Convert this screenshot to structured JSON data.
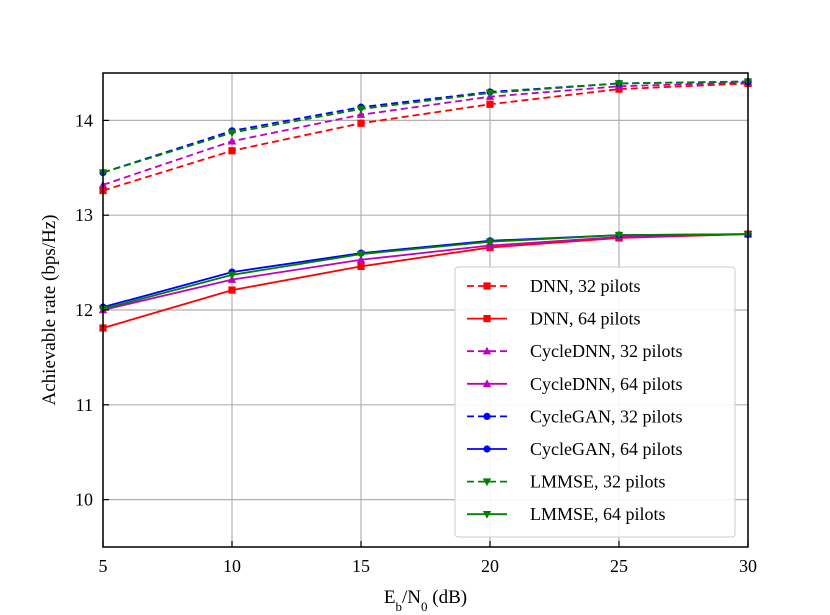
{
  "chart_data": {
    "type": "line",
    "title": "",
    "xlabel": {
      "base": "E",
      "sub1": "b",
      "mid": "/N",
      "sub2": "0",
      "tail": " (dB)"
    },
    "ylabel": "Achievable rate (bps/Hz)",
    "xlim": [
      5,
      30
    ],
    "ylim": [
      9.5,
      14.5
    ],
    "xticks": [
      5,
      10,
      15,
      20,
      25,
      30
    ],
    "yticks": [
      10,
      11,
      12,
      13,
      14
    ],
    "grid": true,
    "legend_position": "lower-right",
    "x": [
      5,
      10,
      15,
      20,
      25,
      30
    ],
    "series": [
      {
        "name": "DNN, 32 pilots",
        "color": "#ff0000",
        "dash": "dashed",
        "marker": "square",
        "values": [
          13.26,
          13.68,
          13.97,
          14.17,
          14.33,
          14.39
        ]
      },
      {
        "name": "DNN, 64 pilots",
        "color": "#ff0000",
        "dash": "solid",
        "marker": "square",
        "values": [
          11.81,
          12.21,
          12.46,
          12.66,
          12.76,
          12.8
        ]
      },
      {
        "name": "CycleDNN, 32 pilots",
        "color": "#bf00bf",
        "dash": "dashed",
        "marker": "triangle-up",
        "values": [
          13.32,
          13.78,
          14.06,
          14.25,
          14.36,
          14.4
        ]
      },
      {
        "name": "CycleDNN, 64 pilots",
        "color": "#bf00bf",
        "dash": "solid",
        "marker": "triangle-up",
        "values": [
          12.0,
          12.32,
          12.53,
          12.68,
          12.77,
          12.8
        ]
      },
      {
        "name": "CycleGAN, 32 pilots",
        "color": "#0000ff",
        "dash": "dashed",
        "marker": "circle",
        "values": [
          13.45,
          13.89,
          14.14,
          14.3,
          14.39,
          14.41
        ]
      },
      {
        "name": "CycleGAN, 64 pilots",
        "color": "#0000ff",
        "dash": "solid",
        "marker": "circle",
        "values": [
          12.03,
          12.4,
          12.6,
          12.73,
          12.79,
          12.8
        ]
      },
      {
        "name": "LMMSE, 32 pilots",
        "color": "#008000",
        "dash": "dashed",
        "marker": "triangle-down",
        "values": [
          13.45,
          13.87,
          14.12,
          14.29,
          14.39,
          14.41
        ]
      },
      {
        "name": "LMMSE, 64 pilots",
        "color": "#008000",
        "dash": "solid",
        "marker": "triangle-down",
        "values": [
          12.01,
          12.37,
          12.59,
          12.72,
          12.79,
          12.8
        ]
      }
    ]
  }
}
